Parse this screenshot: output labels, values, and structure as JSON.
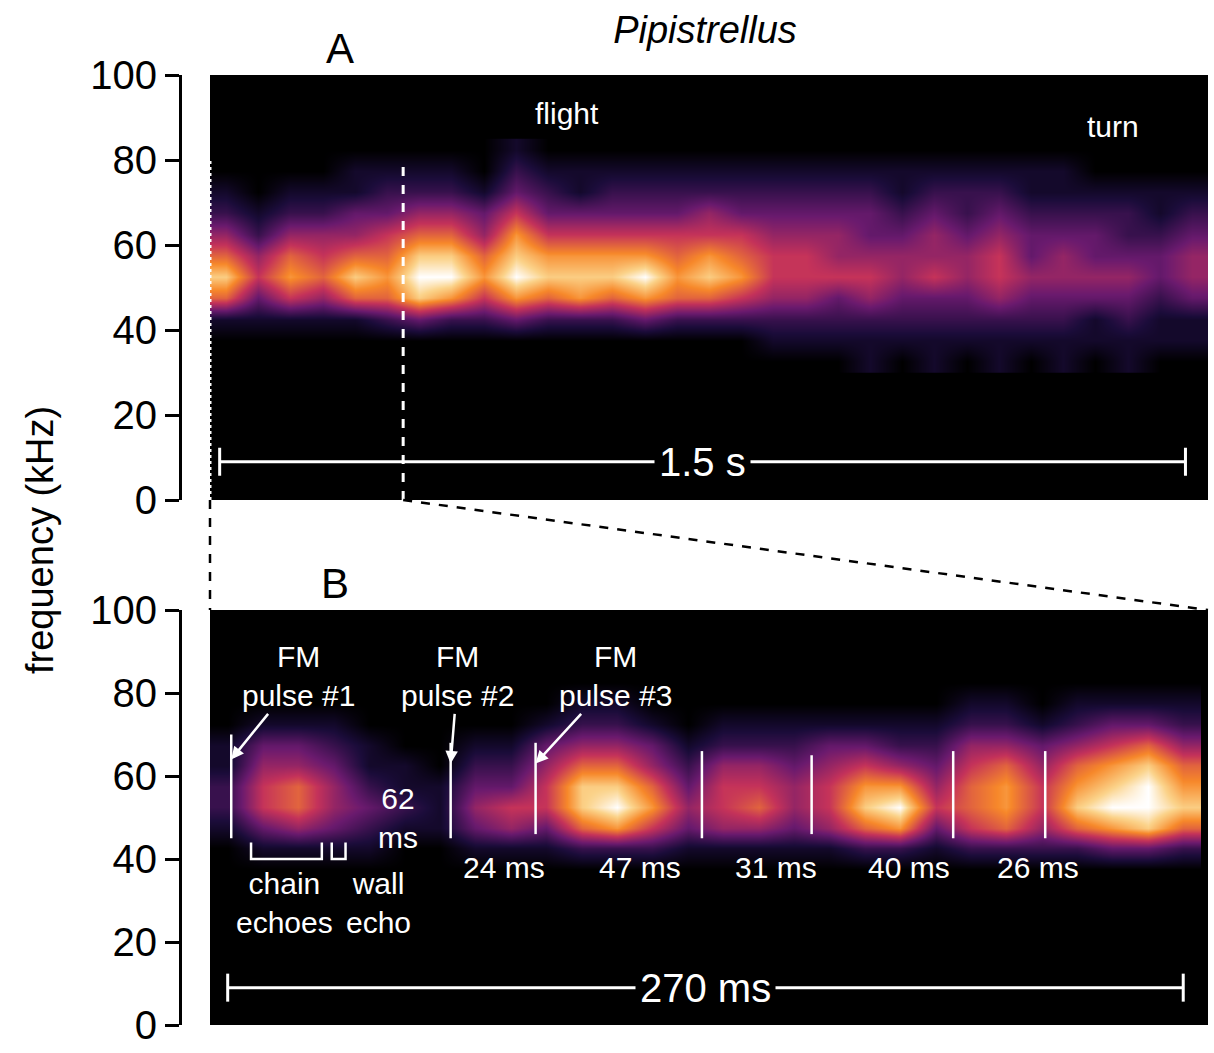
{
  "title": "Pipistrellus",
  "y_label": "frequency (kHz)",
  "chart_data": [
    {
      "type": "heatmap",
      "panel": "A",
      "x": [
        0.025,
        0.075,
        0.125,
        0.175,
        0.225,
        0.275,
        0.325,
        0.375,
        0.425,
        0.475,
        0.525,
        0.575,
        0.625,
        0.675,
        0.725,
        0.775,
        0.825,
        0.875,
        0.925,
        0.975,
        1.025,
        1.075,
        1.125,
        1.175,
        1.225,
        1.275,
        1.325,
        1.375,
        1.425,
        1.475,
        1.525
      ],
      "y": [
        32.5,
        37.5,
        42.5,
        47.5,
        52.5,
        57.5,
        62.5,
        67.5,
        72.5,
        77.5,
        82.5
      ],
      "z": [
        [
          0,
          0,
          1,
          6,
          8,
          6,
          4,
          2,
          1,
          0,
          0
        ],
        [
          0,
          0,
          1,
          3,
          5,
          4,
          2,
          1,
          0,
          0,
          0
        ],
        [
          0,
          0,
          1,
          5,
          7,
          6,
          4,
          2,
          1,
          0,
          0
        ],
        [
          0,
          0,
          1,
          4,
          6,
          5,
          4,
          2,
          1,
          0,
          0
        ],
        [
          0,
          0,
          1,
          6,
          8,
          6,
          4,
          3,
          1,
          1,
          0
        ],
        [
          0,
          0,
          2,
          6,
          7,
          6,
          5,
          3,
          2,
          1,
          0
        ],
        [
          0,
          0,
          3,
          8,
          9,
          8,
          6,
          4,
          2,
          1,
          0
        ],
        [
          0,
          0,
          2,
          7,
          9,
          8,
          6,
          4,
          2,
          1,
          0
        ],
        [
          0,
          0,
          2,
          5,
          7,
          6,
          4,
          3,
          1,
          0,
          0
        ],
        [
          0,
          0,
          3,
          7,
          9,
          8,
          7,
          5,
          3,
          2,
          1
        ],
        [
          0,
          0,
          2,
          6,
          8,
          7,
          5,
          3,
          2,
          1,
          0
        ],
        [
          0,
          0,
          2,
          7,
          8,
          7,
          5,
          3,
          1,
          1,
          0
        ],
        [
          0,
          0,
          2,
          6,
          8,
          7,
          5,
          3,
          2,
          1,
          0
        ],
        [
          0,
          0,
          3,
          7,
          9,
          7,
          5,
          3,
          2,
          1,
          0
        ],
        [
          0,
          0,
          2,
          6,
          7,
          6,
          5,
          3,
          2,
          1,
          0
        ],
        [
          0,
          0,
          2,
          6,
          8,
          7,
          5,
          4,
          2,
          1,
          0
        ],
        [
          0,
          0,
          2,
          5,
          7,
          6,
          5,
          3,
          2,
          1,
          0
        ],
        [
          0,
          1,
          2,
          4,
          5,
          5,
          4,
          3,
          2,
          1,
          0
        ],
        [
          0,
          1,
          2,
          4,
          5,
          5,
          4,
          3,
          2,
          1,
          0
        ],
        [
          0,
          1,
          2,
          3,
          5,
          4,
          4,
          3,
          2,
          1,
          0
        ],
        [
          1,
          1,
          2,
          4,
          5,
          4,
          3,
          3,
          2,
          1,
          0
        ],
        [
          0,
          1,
          2,
          3,
          4,
          4,
          3,
          2,
          1,
          1,
          0
        ],
        [
          1,
          1,
          2,
          3,
          5,
          4,
          4,
          3,
          2,
          1,
          0
        ],
        [
          0,
          1,
          2,
          3,
          4,
          4,
          3,
          2,
          2,
          1,
          0
        ],
        [
          1,
          1,
          2,
          4,
          5,
          5,
          4,
          3,
          2,
          1,
          0
        ],
        [
          0,
          1,
          2,
          3,
          4,
          3,
          3,
          2,
          1,
          1,
          0
        ],
        [
          1,
          1,
          2,
          3,
          4,
          4,
          3,
          2,
          1,
          1,
          0
        ],
        [
          0,
          1,
          1,
          3,
          4,
          3,
          3,
          2,
          1,
          0,
          0
        ],
        [
          1,
          1,
          2,
          3,
          4,
          3,
          2,
          2,
          1,
          0,
          0
        ],
        [
          0,
          1,
          1,
          2,
          3,
          3,
          2,
          1,
          1,
          0,
          0
        ],
        [
          0,
          1,
          1,
          3,
          4,
          4,
          3,
          2,
          1,
          0,
          0
        ]
      ],
      "z_range": [
        0,
        9
      ],
      "xlim": [
        0,
        1.55
      ],
      "ylim": [
        0,
        100
      ],
      "yticks": [
        0,
        20,
        40,
        60,
        80,
        100
      ],
      "tick_labels": "y",
      "annotations": [
        {
          "text": "flight",
          "x": 0.555,
          "y": 91
        },
        {
          "text": "turn",
          "x": 1.403,
          "y": 88
        }
      ],
      "scale_bar": {
        "start": 0.015,
        "end": 1.515,
        "y": 9,
        "label": "1.5 s"
      },
      "zoom_window": [
        0,
        0.3
      ]
    },
    {
      "type": "heatmap",
      "panel": "B",
      "x": [
        5,
        15,
        25,
        35,
        45,
        55,
        65,
        75,
        85,
        95,
        105,
        115,
        125,
        135,
        145,
        155,
        165,
        175,
        185,
        195,
        205,
        215,
        225,
        235,
        245,
        255,
        265,
        275
      ],
      "y": [
        32.5,
        37.5,
        42.5,
        47.5,
        52.5,
        57.5,
        62.5,
        67.5,
        72.5,
        77.5,
        82.5
      ],
      "z": [
        [
          0,
          0,
          0,
          1,
          2,
          2,
          1,
          1,
          0,
          0,
          0
        ],
        [
          0,
          0,
          1,
          3,
          5,
          5,
          4,
          3,
          1,
          0,
          0
        ],
        [
          0,
          0,
          1,
          4,
          6,
          6,
          4,
          3,
          1,
          0,
          0
        ],
        [
          0,
          0,
          1,
          3,
          4,
          4,
          3,
          2,
          1,
          0,
          0
        ],
        [
          0,
          0,
          1,
          2,
          3,
          2,
          1,
          1,
          0,
          0,
          0
        ],
        [
          0,
          0,
          0,
          1,
          2,
          1,
          1,
          0,
          0,
          0,
          0
        ],
        [
          0,
          0,
          0,
          1,
          1,
          1,
          0,
          0,
          0,
          0,
          0
        ],
        [
          0,
          0,
          1,
          3,
          4,
          3,
          2,
          1,
          0,
          0,
          0
        ],
        [
          0,
          0,
          1,
          4,
          5,
          3,
          2,
          1,
          0,
          0,
          0
        ],
        [
          0,
          0,
          1,
          3,
          5,
          5,
          4,
          3,
          1,
          0,
          0
        ],
        [
          0,
          0,
          2,
          6,
          8,
          8,
          6,
          4,
          2,
          1,
          0
        ],
        [
          0,
          0,
          2,
          7,
          9,
          8,
          6,
          4,
          2,
          1,
          0
        ],
        [
          0,
          0,
          2,
          5,
          7,
          6,
          4,
          3,
          1,
          0,
          0
        ],
        [
          0,
          0,
          1,
          3,
          4,
          3,
          2,
          1,
          0,
          0,
          0
        ],
        [
          0,
          0,
          1,
          4,
          5,
          5,
          4,
          2,
          1,
          0,
          0
        ],
        [
          0,
          0,
          1,
          4,
          6,
          5,
          4,
          2,
          1,
          0,
          0
        ],
        [
          0,
          0,
          1,
          3,
          4,
          4,
          3,
          2,
          1,
          0,
          0
        ],
        [
          0,
          0,
          1,
          4,
          5,
          5,
          4,
          3,
          1,
          0,
          0
        ],
        [
          0,
          0,
          2,
          6,
          8,
          7,
          5,
          3,
          1,
          0,
          0
        ],
        [
          0,
          0,
          2,
          7,
          9,
          7,
          4,
          2,
          1,
          0,
          0
        ],
        [
          0,
          0,
          1,
          3,
          5,
          4,
          3,
          2,
          1,
          0,
          0
        ],
        [
          0,
          0,
          2,
          5,
          6,
          6,
          5,
          4,
          2,
          1,
          0
        ],
        [
          0,
          0,
          2,
          6,
          7,
          7,
          6,
          4,
          2,
          1,
          0
        ],
        [
          0,
          0,
          2,
          4,
          5,
          5,
          4,
          3,
          1,
          0,
          0
        ],
        [
          0,
          0,
          2,
          6,
          8,
          7,
          6,
          4,
          2,
          1,
          0
        ],
        [
          0,
          0,
          3,
          7,
          9,
          8,
          7,
          5,
          3,
          1,
          0
        ],
        [
          0,
          0,
          3,
          8,
          9,
          9,
          8,
          6,
          3,
          1,
          0
        ],
        [
          0,
          0,
          2,
          6,
          8,
          7,
          6,
          4,
          2,
          1,
          0
        ]
      ],
      "z_range": [
        0,
        9
      ],
      "xlim": [
        0,
        282
      ],
      "ylim": [
        0,
        100
      ],
      "yticks": [
        0,
        20,
        40,
        60,
        80,
        100
      ],
      "tick_labels": "y",
      "pulses": {
        "t": [
          6,
          68,
          92,
          139,
          170,
          210,
          236
        ],
        "f_low": [
          45,
          45,
          46,
          45,
          46,
          45,
          45
        ],
        "f_high": [
          70,
          68,
          68,
          66,
          65,
          66,
          66
        ]
      },
      "annotations": [
        {
          "text": "FM\npulse #1",
          "x": 25,
          "y": 84,
          "arrow_to": [
            6,
            64
          ]
        },
        {
          "text": "FM\npulse #2",
          "x": 70,
          "y": 84,
          "arrow_to": [
            68,
            63
          ]
        },
        {
          "text": "FM\npulse #3",
          "x": 114.6,
          "y": 84,
          "arrow_to": [
            92,
            63
          ]
        },
        {
          "text": "62\nms",
          "x": 53,
          "y": 50
        },
        {
          "text": "24 ms",
          "x": 83,
          "y": 38
        },
        {
          "text": "47 ms",
          "x": 121.5,
          "y": 38
        },
        {
          "text": "31 ms",
          "x": 160,
          "y": 38
        },
        {
          "text": "40 ms",
          "x": 197.6,
          "y": 38
        },
        {
          "text": "26 ms",
          "x": 234,
          "y": 38
        }
      ],
      "brackets": [
        {
          "x0": 11.6,
          "x1": 31.6,
          "y0": 40,
          "y1": 44,
          "label": "chain\nechoes",
          "label_x": 21,
          "label_y": 29.5
        },
        {
          "x0": 34.4,
          "x1": 38.3,
          "y0": 40,
          "y1": 44,
          "label": "wall\necho",
          "label_x": 47.5,
          "label_y": 29.5
        }
      ],
      "scale_bar": {
        "start": 5,
        "end": 275,
        "y": 9,
        "label": "270 ms"
      }
    }
  ]
}
